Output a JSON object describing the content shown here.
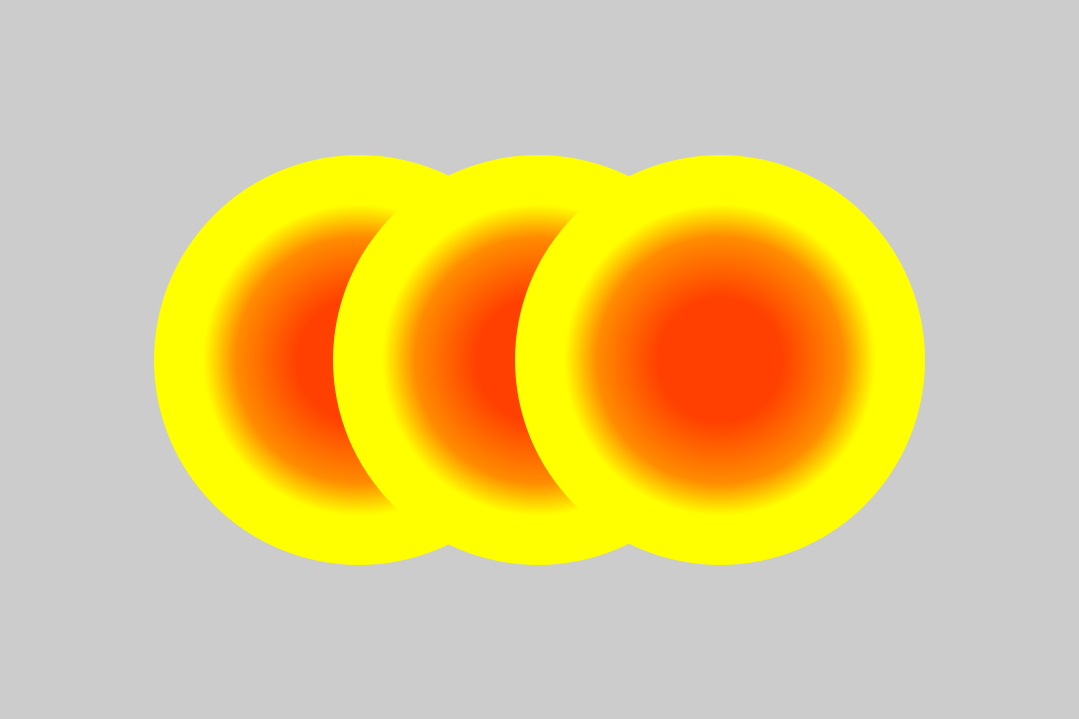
{
  "colors": {
    "background": "#cccccc",
    "gradient_inner": "#ff4000",
    "gradient_mid": "#ff8c00",
    "gradient_outer": "#ffff00"
  },
  "shapes": {
    "count": 3,
    "items": [
      {
        "name": "gradient-circle-left"
      },
      {
        "name": "gradient-circle-center"
      },
      {
        "name": "gradient-circle-right"
      }
    ]
  }
}
